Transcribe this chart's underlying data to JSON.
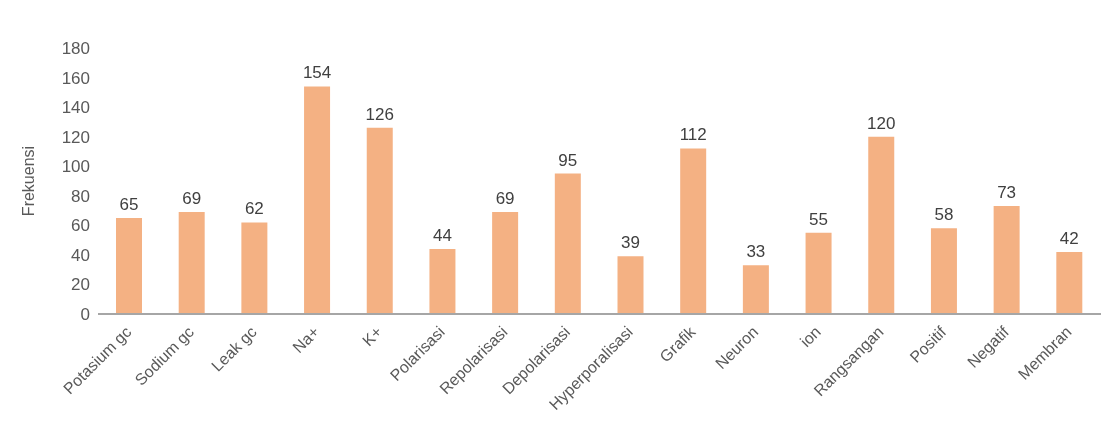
{
  "chart_data": {
    "type": "bar",
    "ylabel": "Frekuensi",
    "categories": [
      "Potasium gc",
      "Sodium gc",
      "Leak gc",
      "Na+",
      "K+",
      "Polarisasi",
      "Repolarisasi",
      "Depolarisasi",
      "Hyperporalisasi",
      "Grafik",
      "Neuron",
      "ion",
      "Rangsangan",
      "Positif",
      "Negatif",
      "Membran"
    ],
    "values": [
      65,
      69,
      62,
      154,
      126,
      44,
      69,
      95,
      39,
      112,
      33,
      55,
      120,
      58,
      73,
      42
    ],
    "color": "#f4b183",
    "ylim": [
      0,
      180
    ],
    "yticks": [
      0,
      20,
      40,
      60,
      80,
      100,
      120,
      140,
      160,
      180
    ],
    "grid": false,
    "data_labels": true
  }
}
